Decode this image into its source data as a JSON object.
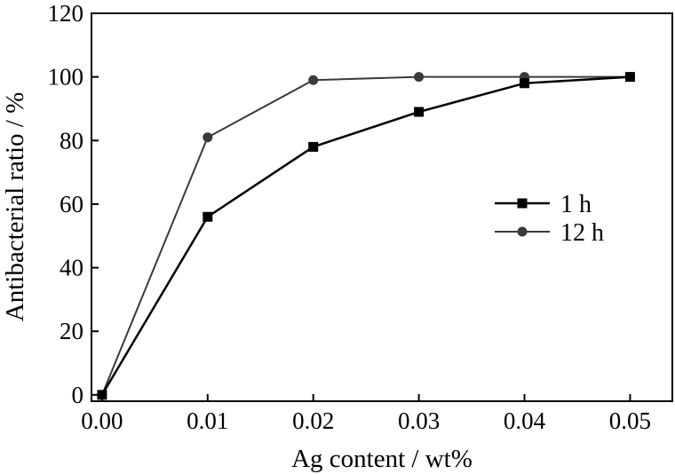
{
  "chart_data": {
    "type": "line",
    "title": "",
    "xlabel": "Ag content / wt%",
    "ylabel": "Antibacterial ratio / %",
    "x": [
      0.0,
      0.01,
      0.02,
      0.03,
      0.04,
      0.05
    ],
    "x_tick_labels": [
      "0.00",
      "0.01",
      "0.02",
      "0.03",
      "0.04",
      "0.05"
    ],
    "y_ticks": [
      0,
      20,
      40,
      60,
      80,
      100,
      120
    ],
    "y_tick_labels": [
      "0",
      "20",
      "40",
      "60",
      "80",
      "100",
      "120"
    ],
    "xlim": [
      -0.001,
      0.054
    ],
    "ylim": [
      -2,
      120
    ],
    "grid": false,
    "legend_position": "right",
    "series": [
      {
        "name": "1 h",
        "marker": "square",
        "color": "#000000",
        "values": [
          0,
          56,
          78,
          89,
          98,
          100
        ]
      },
      {
        "name": "12 h",
        "marker": "circle",
        "color": "#3a3a3a",
        "values": [
          0,
          81,
          99,
          100,
          100,
          100
        ]
      }
    ]
  }
}
